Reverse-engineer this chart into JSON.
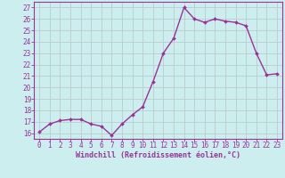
{
  "hours": [
    0,
    1,
    2,
    3,
    4,
    5,
    6,
    7,
    8,
    9,
    10,
    11,
    12,
    13,
    14,
    15,
    16,
    17,
    18,
    19,
    20,
    21,
    22,
    23
  ],
  "values": [
    16.1,
    16.8,
    17.1,
    17.2,
    17.2,
    16.8,
    16.6,
    15.8,
    16.8,
    17.6,
    18.3,
    20.5,
    23.0,
    24.3,
    27.0,
    26.0,
    25.7,
    26.0,
    25.8,
    25.7,
    25.4,
    23.0,
    21.1,
    21.2
  ],
  "line_color": "#993399",
  "marker": "D",
  "marker_size": 2.0,
  "bg_color": "#cceeee",
  "grid_color": "#bbcccc",
  "ylabel_ticks": [
    16,
    17,
    18,
    19,
    20,
    21,
    22,
    23,
    24,
    25,
    26,
    27
  ],
  "xlabel": "Windchill (Refroidissement éolien,°C)",
  "xlabel_color": "#993399",
  "tick_color": "#993399",
  "ylim": [
    15.5,
    27.5
  ],
  "xlim": [
    -0.5,
    23.5
  ],
  "linewidth": 1.0,
  "border_color": "#993399",
  "tick_fontsize": 5.5,
  "xlabel_fontsize": 6.0
}
